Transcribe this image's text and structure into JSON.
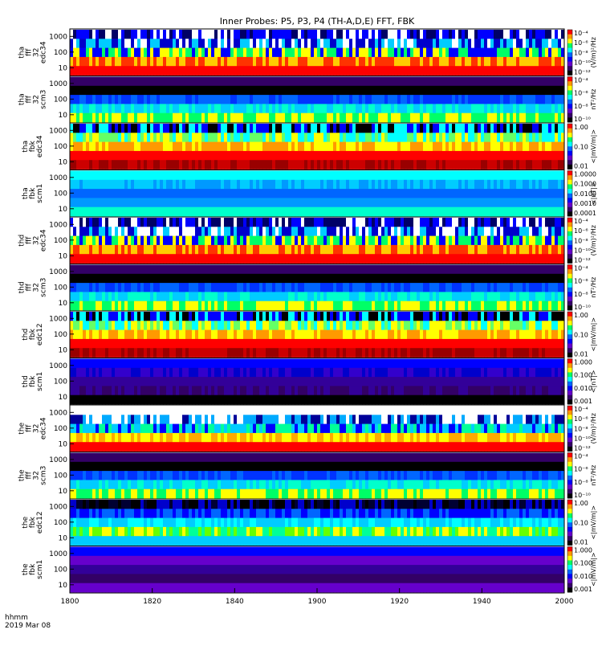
{
  "chart_data": {
    "type": "heatmap",
    "title": "Inner Probes: P5, P3, P4 (TH-A,D,E) FFT, FBK",
    "xlabel_line1": "hhmm",
    "xlabel_line2": "2019 Mar 08",
    "x_ticks": [
      "1800",
      "1820",
      "1840",
      "1900",
      "1920",
      "1940",
      "2000"
    ],
    "xlim": [
      "1800",
      "2000"
    ],
    "y_scale": "log",
    "ylim": [
      3,
      3000
    ],
    "y_ticks": [
      "10",
      "100",
      "1000"
    ],
    "panels": [
      {
        "probe": "tha",
        "kind": "fff",
        "n": "32",
        "sensor": "edc34",
        "y_ticks": [
          "10",
          "100",
          "1000"
        ],
        "cb_ticks": [
          "10⁻⁴",
          "10⁻⁶",
          "10⁻⁸",
          "10⁻¹⁰",
          "10⁻¹²"
        ],
        "cb_label": "(V/m)²/Hz",
        "pattern": "efff"
      },
      {
        "probe": "tha",
        "kind": "fff",
        "n": "32",
        "sensor": "scm3",
        "y_ticks": [
          "10",
          "100",
          "1000"
        ],
        "cb_ticks": [
          "10⁻⁴",
          "10⁻⁶",
          "10⁻⁸",
          "10⁻¹⁰"
        ],
        "cb_label": "nT²/Hz",
        "pattern": "bfff"
      },
      {
        "probe": "tha",
        "kind": "fbk",
        "n": "",
        "sensor": "edc34",
        "y_ticks": [
          "10",
          "100",
          "1000"
        ],
        "cb_ticks": [
          "1.00",
          "0.10",
          "0.01"
        ],
        "cb_label": "<|mV/m|>",
        "pattern": "efbk"
      },
      {
        "probe": "tha",
        "kind": "fbk",
        "n": "",
        "sensor": "scm1",
        "y_ticks": [
          "10",
          "100",
          "1000"
        ],
        "cb_ticks": [
          "1.0000",
          "0.1000",
          "0.0100",
          "0.0010",
          "0.0001"
        ],
        "cb_label": "<|nT|>",
        "pattern": "bfbk"
      },
      {
        "probe": "thd",
        "kind": "fff",
        "n": "32",
        "sensor": "edc34",
        "y_ticks": [
          "10",
          "100",
          "1000"
        ],
        "cb_ticks": [
          "10⁻⁴",
          "10⁻⁶",
          "10⁻⁸",
          "10⁻¹⁰",
          "10⁻¹²"
        ],
        "cb_label": "(V/m)²/Hz",
        "pattern": "efff"
      },
      {
        "probe": "thd",
        "kind": "fff",
        "n": "32",
        "sensor": "scm3",
        "y_ticks": [
          "10",
          "100",
          "1000"
        ],
        "cb_ticks": [
          "10⁻⁴",
          "10⁻⁶",
          "10⁻⁸",
          "10⁻¹⁰"
        ],
        "cb_label": "nT²/Hz",
        "pattern": "bfff"
      },
      {
        "probe": "thd",
        "kind": "fbk",
        "n": "",
        "sensor": "edc12",
        "y_ticks": [
          "10",
          "100",
          "1000"
        ],
        "cb_ticks": [
          "1.00",
          "0.10",
          "0.01"
        ],
        "cb_label": "<|mV/m|>",
        "pattern": "efbk"
      },
      {
        "probe": "thd",
        "kind": "fbk",
        "n": "",
        "sensor": "scm1",
        "y_ticks": [
          "10",
          "100",
          "1000"
        ],
        "cb_ticks": [
          "1.000",
          "0.100",
          "0.010",
          "0.001"
        ],
        "cb_label": "<|nT|>",
        "pattern": "bfbk2"
      },
      {
        "probe": "the",
        "kind": "fff",
        "n": "32",
        "sensor": "edc34",
        "y_ticks": [
          "10",
          "100",
          "1000"
        ],
        "cb_ticks": [
          "10⁻⁴",
          "10⁻⁶",
          "10⁻⁸",
          "10⁻¹⁰",
          "10⁻¹²"
        ],
        "cb_label": "(V/m)²/Hz",
        "pattern": "efff2"
      },
      {
        "probe": "the",
        "kind": "fff",
        "n": "32",
        "sensor": "scm3",
        "y_ticks": [
          "10",
          "100",
          "1000"
        ],
        "cb_ticks": [
          "10⁻⁴",
          "10⁻⁶",
          "10⁻⁸",
          "10⁻¹⁰"
        ],
        "cb_label": "nT²/Hz",
        "pattern": "bfff"
      },
      {
        "probe": "the",
        "kind": "fbk",
        "n": "",
        "sensor": "edc12",
        "y_ticks": [
          "10",
          "100",
          "1000"
        ],
        "cb_ticks": [
          "1.00",
          "0.10",
          "0.01"
        ],
        "cb_label": "<|mV/m|>",
        "pattern": "efbk2"
      },
      {
        "probe": "the",
        "kind": "fbk",
        "n": "",
        "sensor": "scm1",
        "y_ticks": [
          "10",
          "100",
          "1000"
        ],
        "cb_ticks": [
          "1.000",
          "0.100",
          "0.010",
          "0.001"
        ],
        "cb_label": "<|mV/m|>",
        "pattern": "bfbk3"
      }
    ],
    "colorbar_colors": [
      "#ff0000",
      "#ff9900",
      "#ffff00",
      "#00ff66",
      "#00ffff",
      "#0066ff",
      "#0000ff",
      "#6600cc",
      "#330066",
      "#000000"
    ]
  }
}
